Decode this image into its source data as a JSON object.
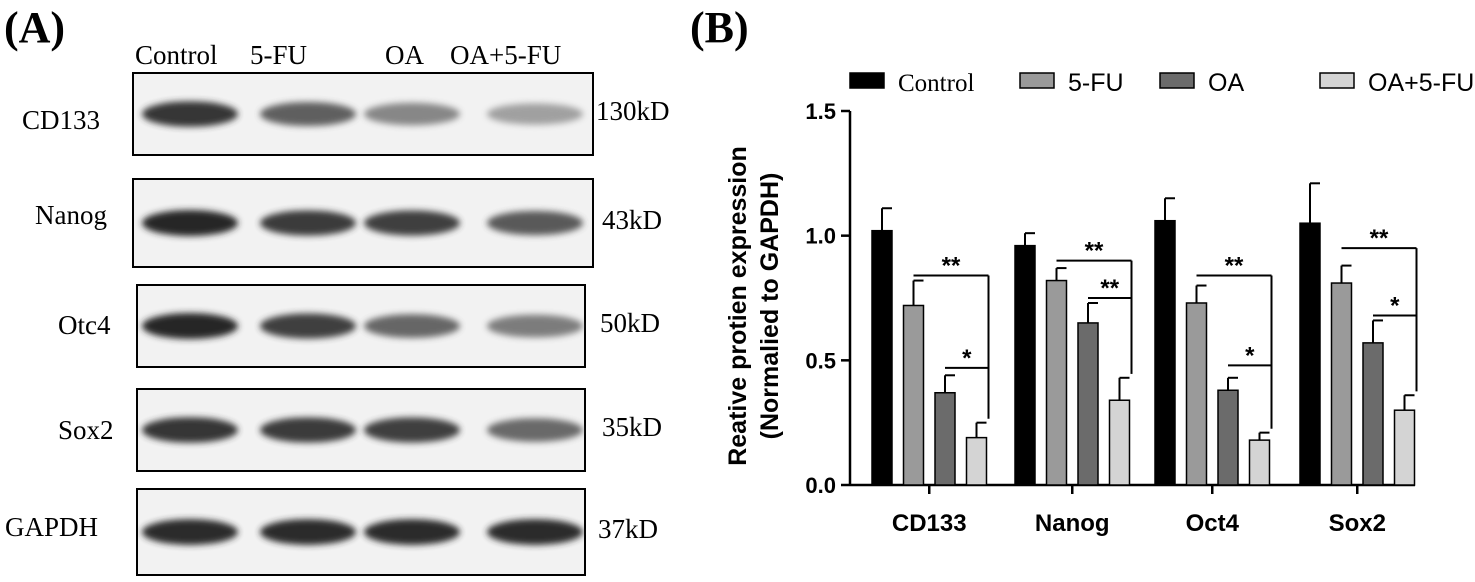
{
  "panel_a": {
    "letter": "(A)",
    "lanes": [
      "Control",
      "5-FU",
      "OA",
      "OA+5-FU"
    ],
    "rows": [
      {
        "protein": "CD133",
        "mw": "130kD",
        "intensity": [
          0.95,
          0.75,
          0.55,
          0.4
        ]
      },
      {
        "protein": "Nanog",
        "mw": "43kD",
        "intensity": [
          1.0,
          0.92,
          0.9,
          0.78
        ]
      },
      {
        "protein": "Otc4",
        "mw": "50kD",
        "intensity": [
          1.0,
          0.9,
          0.72,
          0.6
        ]
      },
      {
        "protein": "Sox2",
        "mw": "35kD",
        "intensity": [
          0.95,
          0.92,
          0.9,
          0.7
        ]
      },
      {
        "protein": "GAPDH",
        "mw": "37kD",
        "intensity": [
          0.98,
          0.98,
          0.98,
          0.98
        ]
      }
    ]
  },
  "panel_b": {
    "letter": "(B)"
  },
  "chart_data": {
    "type": "bar",
    "title": "",
    "ylabel_line1": "Reative protien expression",
    "ylabel_line2": "(Normalied to GAPDH)",
    "xlabel": "",
    "ylim": [
      0,
      1.5
    ],
    "yticks": [
      "0.0",
      "0.5",
      "1.0",
      "1.5"
    ],
    "categories": [
      "CD133",
      "Nanog",
      "Oct4",
      "Sox2"
    ],
    "legend_position": "top",
    "series": [
      {
        "name": "Control",
        "color": "#000000",
        "values": [
          1.02,
          0.96,
          1.06,
          1.05
        ],
        "errors": [
          0.09,
          0.05,
          0.09,
          0.16
        ]
      },
      {
        "name": "5-FU",
        "color": "#9a9a9a",
        "values": [
          0.72,
          0.82,
          0.73,
          0.81
        ],
        "errors": [
          0.1,
          0.05,
          0.07,
          0.07
        ]
      },
      {
        "name": "OA",
        "color": "#6b6b6b",
        "values": [
          0.37,
          0.65,
          0.38,
          0.57
        ],
        "errors": [
          0.07,
          0.08,
          0.05,
          0.09
        ]
      },
      {
        "name": "OA+5-FU",
        "color": "#d4d4d4",
        "values": [
          0.19,
          0.34,
          0.18,
          0.3
        ],
        "errors": [
          0.06,
          0.09,
          0.03,
          0.06
        ]
      }
    ],
    "significance": [
      {
        "category": 0,
        "from_series": 1,
        "to_series": 3,
        "y": 0.84,
        "label": "**"
      },
      {
        "category": 0,
        "from_series": 2,
        "to_series": 3,
        "y": 0.47,
        "label": "*"
      },
      {
        "category": 1,
        "from_series": 1,
        "to_series": 3,
        "y": 0.9,
        "label": "**"
      },
      {
        "category": 1,
        "from_series": 2,
        "to_series": 3,
        "y": 0.75,
        "label": "**"
      },
      {
        "category": 2,
        "from_series": 1,
        "to_series": 3,
        "y": 0.84,
        "label": "**"
      },
      {
        "category": 2,
        "from_series": 2,
        "to_series": 3,
        "y": 0.48,
        "label": "*"
      },
      {
        "category": 3,
        "from_series": 1,
        "to_series": 3,
        "y": 0.95,
        "label": "**"
      },
      {
        "category": 3,
        "from_series": 2,
        "to_series": 3,
        "y": 0.68,
        "label": "*"
      }
    ]
  }
}
